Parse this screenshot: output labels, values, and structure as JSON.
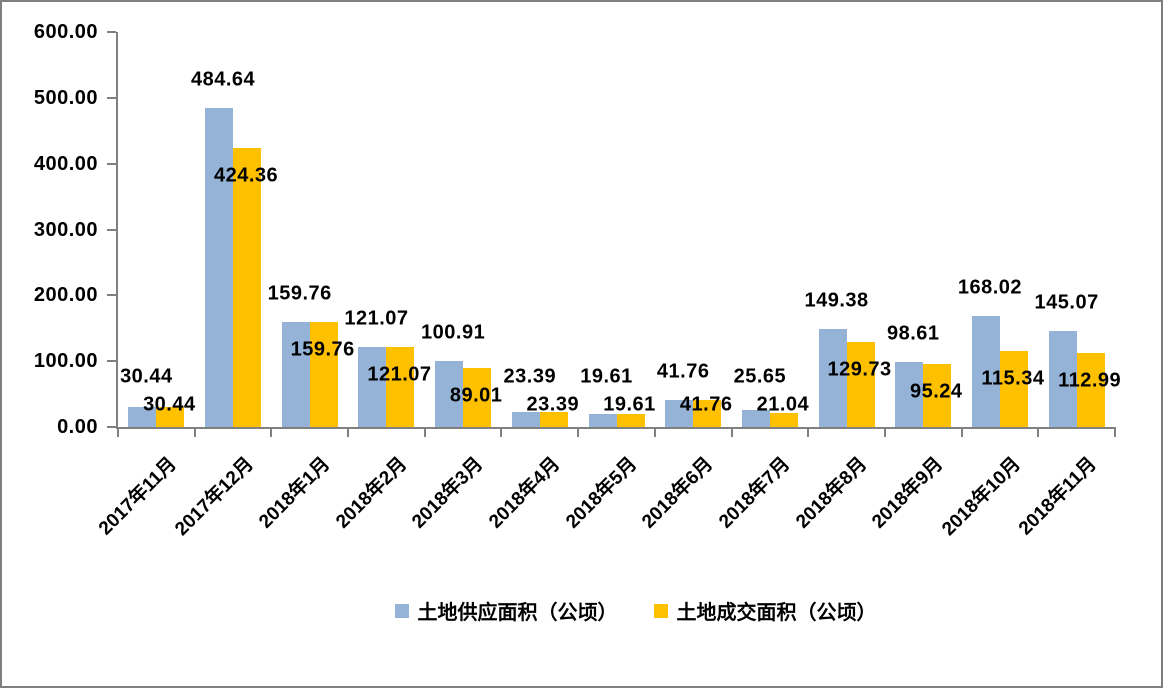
{
  "chart_data": {
    "type": "bar",
    "title": "",
    "categories": [
      "2017年11月",
      "2017年12月",
      "2018年1月",
      "2018年2月",
      "2018年3月",
      "2018年4月",
      "2018年5月",
      "2018年6月",
      "2018年7月",
      "2018年8月",
      "2018年9月",
      "2018年10月",
      "2018年11月"
    ],
    "series": [
      {
        "name": "土地供应面积（公顷）",
        "color": "#95B3D7",
        "values": [
          30.44,
          484.64,
          159.76,
          121.07,
          100.91,
          23.39,
          19.61,
          41.76,
          25.65,
          149.38,
          98.61,
          168.02,
          145.07
        ]
      },
      {
        "name": "土地成交面积（公顷）",
        "color": "#FFC000",
        "values": [
          30.44,
          424.36,
          159.76,
          121.07,
          89.01,
          23.39,
          19.61,
          41.76,
          21.04,
          129.73,
          95.24,
          115.34,
          112.99
        ]
      }
    ],
    "ylim": [
      0,
      600
    ],
    "ytick_interval": 100,
    "ytick_labels": [
      "0.00",
      "100.00",
      "200.00",
      "300.00",
      "400.00",
      "500.00",
      "600.00"
    ],
    "xlabel": "",
    "ylabel": "",
    "grid": false,
    "legend_position": "bottom",
    "data_labels": true,
    "axis_color": "#808080",
    "frame_border_color": "#7F7F7F",
    "text_color": "#000000"
  }
}
